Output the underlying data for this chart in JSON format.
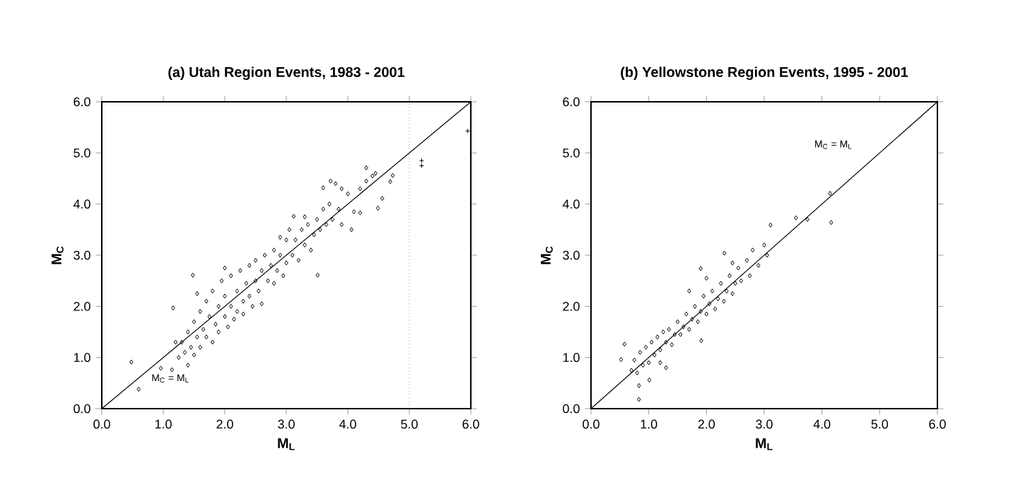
{
  "chart_data": [
    {
      "type": "scatter",
      "title": "(a)  Utah Region Events, 1983 - 2001",
      "xlabel": "M$_{L}$",
      "ylabel": "M$_{C}$",
      "xlim": [
        0,
        6
      ],
      "ylim": [
        0,
        6
      ],
      "xticks": [
        {
          "value": 0,
          "label": "0.0"
        },
        {
          "value": 1,
          "label": "1.0"
        },
        {
          "value": 2,
          "label": "2.0"
        },
        {
          "value": 3,
          "label": "3.0"
        },
        {
          "value": 4,
          "label": "4.0"
        },
        {
          "value": 5,
          "label": "5.0"
        },
        {
          "value": 6,
          "label": "6.0"
        }
      ],
      "yticks": [
        {
          "value": 0,
          "label": "0.0"
        },
        {
          "value": 1,
          "label": "1.0"
        },
        {
          "value": 2,
          "label": "2.0"
        },
        {
          "value": 3,
          "label": "3.0"
        },
        {
          "value": 4,
          "label": "4.0"
        },
        {
          "value": 5,
          "label": "5.0"
        },
        {
          "value": 6,
          "label": "6.0"
        }
      ],
      "grid": false,
      "series": [
        {
          "marker": "diamond",
          "color": "#000000",
          "x": [
            0.48,
            0.6,
            0.96,
            1.14,
            1.4,
            1.16,
            1.48,
            3.51,
            4.49,
            4.56,
            4.69,
            4.73,
            4.3,
            4.06,
            4.2,
            3.72,
            3.6,
            3.12,
            1.3,
            1.35,
            1.4,
            1.45,
            1.5,
            1.5,
            1.55,
            1.6,
            1.6,
            1.65,
            1.7,
            1.7,
            1.75,
            1.8,
            1.8,
            1.85,
            1.9,
            1.9,
            1.95,
            2.0,
            2.0,
            2.05,
            2.1,
            2.1,
            2.15,
            2.2,
            2.2,
            2.25,
            2.3,
            2.3,
            2.35,
            2.4,
            2.4,
            2.45,
            2.5,
            2.5,
            2.55,
            2.6,
            2.6,
            2.65,
            2.7,
            2.75,
            2.8,
            2.8,
            2.85,
            2.9,
            2.95,
            3.0,
            3.0,
            3.05,
            3.1,
            3.15,
            3.2,
            3.25,
            3.3,
            3.35,
            3.4,
            3.45,
            3.5,
            3.55,
            3.6,
            3.65,
            3.7,
            3.75,
            3.8,
            3.85,
            3.9,
            4.0,
            4.1,
            4.2,
            4.3,
            4.4,
            4.45,
            3.9,
            1.2,
            1.25,
            1.55,
            2.0,
            2.9,
            3.3
          ],
          "values": [
            0.91,
            0.38,
            0.79,
            0.76,
            0.85,
            1.97,
            2.61,
            2.61,
            3.92,
            4.11,
            4.44,
            4.56,
            4.71,
            3.5,
            3.83,
            4.45,
            4.32,
            3.76,
            1.3,
            1.1,
            1.5,
            1.2,
            1.05,
            1.7,
            1.4,
            1.9,
            1.2,
            1.55,
            2.1,
            1.4,
            1.8,
            1.3,
            2.3,
            1.65,
            2.0,
            1.5,
            2.5,
            1.8,
            2.2,
            1.6,
            2.0,
            2.6,
            1.75,
            2.3,
            1.9,
            2.7,
            2.1,
            1.85,
            2.45,
            2.2,
            2.8,
            2.0,
            2.5,
            2.9,
            2.3,
            2.7,
            2.05,
            3.0,
            2.5,
            2.8,
            3.1,
            2.45,
            2.7,
            3.0,
            2.6,
            3.3,
            2.85,
            3.5,
            3.0,
            3.3,
            2.9,
            3.5,
            3.2,
            3.6,
            3.1,
            3.4,
            3.7,
            3.5,
            3.9,
            3.6,
            4.0,
            3.7,
            4.4,
            3.9,
            3.6,
            4.2,
            3.85,
            4.3,
            4.45,
            4.55,
            4.6,
            4.3,
            1.3,
            1.0,
            2.25,
            2.75,
            3.35,
            3.75
          ]
        },
        {
          "marker": "cross",
          "color": "#000000",
          "x": [
            5.2,
            5.2,
            5.95
          ],
          "values": [
            4.85,
            4.75,
            5.43
          ]
        },
        {
          "type": "line",
          "color": "#000000",
          "x": [
            0,
            6
          ],
          "values": [
            0,
            6
          ]
        }
      ],
      "ref_lines": [
        {
          "axis": "x",
          "value": 5,
          "line_style": "dotted",
          "color": "#555555"
        }
      ],
      "annotations": [
        {
          "text": "M$_{C}$ = M$_{L}$",
          "x": 0.78,
          "y": 0.59
        }
      ]
    },
    {
      "type": "scatter",
      "title": "(b)  Yellowstone Region Events, 1995 - 2001",
      "xlabel": "M$_{L}$",
      "ylabel": "M$_{C}$",
      "xlim": [
        0,
        6
      ],
      "ylim": [
        0,
        6
      ],
      "xticks": [
        {
          "value": 0,
          "label": "0.0"
        },
        {
          "value": 1,
          "label": "1.0"
        },
        {
          "value": 2,
          "label": "2.0"
        },
        {
          "value": 3,
          "label": "3.0"
        },
        {
          "value": 4,
          "label": "4.0"
        },
        {
          "value": 5,
          "label": "5.0"
        },
        {
          "value": 6,
          "label": "6.0"
        }
      ],
      "yticks": [
        {
          "value": 0,
          "label": "0.0"
        },
        {
          "value": 1,
          "label": "1.0"
        },
        {
          "value": 2,
          "label": "2.0"
        },
        {
          "value": 3,
          "label": "3.0"
        },
        {
          "value": 4,
          "label": "4.0"
        },
        {
          "value": 5,
          "label": "5.0"
        },
        {
          "value": 6,
          "label": "6.0"
        }
      ],
      "grid": false,
      "series": [
        {
          "marker": "diamond",
          "color": "#000000",
          "x": [
            4.14,
            4.16,
            3.75,
            3.55,
            0.83,
            0.83,
            0.58,
            0.52,
            1.01,
            1.91,
            2.31,
            1.9,
            3.11,
            0.7,
            0.75,
            0.8,
            0.85,
            0.9,
            0.95,
            1.0,
            1.05,
            1.1,
            1.15,
            1.2,
            1.25,
            1.3,
            1.35,
            1.4,
            1.45,
            1.5,
            1.55,
            1.6,
            1.65,
            1.7,
            1.75,
            1.8,
            1.85,
            1.9,
            1.95,
            2.0,
            2.05,
            2.1,
            2.15,
            2.2,
            2.25,
            2.3,
            2.35,
            2.4,
            2.45,
            2.5,
            2.55,
            2.6,
            2.7,
            2.75,
            2.8,
            2.9,
            3.0,
            3.05,
            2.0,
            1.7,
            2.45,
            1.2,
            1.3
          ],
          "values": [
            4.21,
            3.64,
            3.7,
            3.73,
            0.18,
            0.45,
            1.26,
            0.96,
            0.56,
            1.33,
            3.04,
            2.74,
            3.59,
            0.75,
            0.95,
            0.7,
            1.1,
            0.85,
            1.2,
            0.9,
            1.3,
            1.05,
            1.4,
            1.15,
            1.5,
            1.3,
            1.55,
            1.25,
            1.45,
            1.7,
            1.45,
            1.6,
            1.85,
            1.55,
            1.75,
            2.0,
            1.7,
            1.9,
            2.2,
            1.85,
            2.05,
            2.3,
            1.95,
            2.15,
            2.45,
            2.1,
            2.3,
            2.6,
            2.25,
            2.45,
            2.75,
            2.5,
            2.9,
            2.6,
            3.1,
            2.8,
            3.2,
            3.0,
            2.55,
            2.3,
            2.85,
            0.9,
            0.8
          ]
        },
        {
          "type": "line",
          "color": "#000000",
          "x": [
            0,
            6
          ],
          "values": [
            0,
            6
          ]
        }
      ],
      "annotations": [
        "M$_{C}$ = M$_{L}$"
      ]
    }
  ]
}
